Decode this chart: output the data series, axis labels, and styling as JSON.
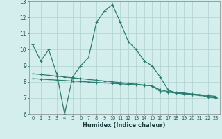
{
  "line1_x": [
    0,
    1,
    2,
    3,
    4,
    5,
    6,
    7,
    8,
    9,
    10,
    11,
    12,
    13,
    14,
    15,
    16,
    17,
    18,
    19,
    20,
    21,
    22,
    23
  ],
  "line1_y": [
    10.3,
    9.3,
    10.0,
    8.5,
    6.0,
    8.3,
    9.0,
    9.5,
    11.7,
    12.4,
    12.8,
    11.7,
    10.5,
    10.0,
    9.3,
    9.0,
    8.3,
    7.5,
    7.3,
    7.3,
    7.2,
    7.2,
    7.05,
    7.0
  ],
  "line2_x": [
    0,
    1,
    2,
    3,
    4,
    5,
    6,
    7,
    8,
    9,
    10,
    11,
    12,
    13,
    14,
    15,
    16,
    17,
    18,
    19,
    20,
    21,
    22,
    23
  ],
  "line2_y": [
    8.5,
    8.45,
    8.4,
    8.35,
    8.3,
    8.25,
    8.2,
    8.15,
    8.1,
    8.05,
    8.0,
    7.95,
    7.9,
    7.85,
    7.8,
    7.75,
    7.5,
    7.4,
    7.35,
    7.3,
    7.25,
    7.2,
    7.15,
    7.1
  ],
  "line3_x": [
    0,
    1,
    2,
    3,
    4,
    5,
    6,
    7,
    8,
    9,
    10,
    11,
    12,
    13,
    14,
    15,
    16,
    17,
    18,
    19,
    20,
    21,
    22,
    23
  ],
  "line3_y": [
    8.2,
    8.17,
    8.14,
    8.11,
    8.08,
    8.05,
    8.02,
    7.99,
    7.96,
    7.93,
    7.9,
    7.87,
    7.84,
    7.81,
    7.78,
    7.75,
    7.4,
    7.35,
    7.3,
    7.25,
    7.2,
    7.15,
    7.1,
    7.05
  ],
  "color": "#2a7d6f",
  "bg_color": "#d4eeee",
  "grid_color": "#b0d0d0",
  "xlabel": "Humidex (Indice chaleur)",
  "xlim": [
    -0.5,
    23.5
  ],
  "ylim": [
    6,
    13
  ],
  "yticks": [
    6,
    7,
    8,
    9,
    10,
    11,
    12,
    13
  ],
  "xticks": [
    0,
    1,
    2,
    3,
    4,
    5,
    6,
    7,
    8,
    9,
    10,
    11,
    12,
    13,
    14,
    15,
    16,
    17,
    18,
    19,
    20,
    21,
    22,
    23
  ],
  "markersize": 3,
  "linewidth": 0.9
}
